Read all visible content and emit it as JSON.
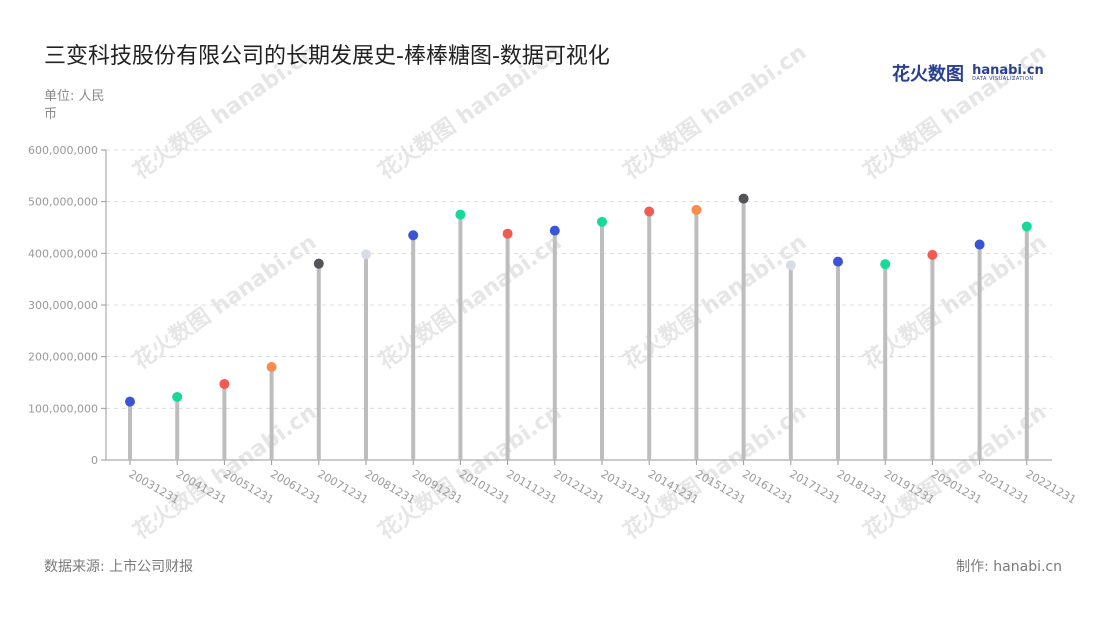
{
  "title": "三变科技股份有限公司的长期发展史-棒棒糖图-数据可视化",
  "unit_label": "单位: 人民币",
  "logo": {
    "cn": "花火数图",
    "en": "hanabi.cn",
    "en_sub": "DATA VISUALIZATION"
  },
  "source_label": "数据来源: 上市公司财报",
  "maker_label": "制作:",
  "maker_value": "hanabi.cn",
  "watermark": "花火数图 hanabi.cn",
  "colors": {
    "stem": "#bdbdbd",
    "grid": "#dcdcdc",
    "axis": "#999999",
    "tick": "#999999"
  },
  "chart_data": {
    "type": "lollipop",
    "title": "三变科技股份有限公司的长期发展史-棒棒糖图-数据可视化",
    "ylabel": "单位: 人民币",
    "ylim": [
      0,
      600000000
    ],
    "yticks": [
      0,
      100000000,
      200000000,
      300000000,
      400000000,
      500000000,
      600000000
    ],
    "ytick_labels": [
      "0",
      "100,000,000",
      "200,000,000",
      "300,000,000",
      "400,000,000",
      "500,000,000",
      "600,000,000"
    ],
    "grid": true,
    "categories": [
      "20031231",
      "20041231",
      "20051231",
      "20061231",
      "20071231",
      "20081231",
      "20091231",
      "20101231",
      "20111231",
      "20121231",
      "20131231",
      "20141231",
      "20151231",
      "20161231",
      "20171231",
      "20181231",
      "20191231",
      "20201231",
      "20211231",
      "20221231"
    ],
    "values": [
      113000000,
      122000000,
      147000000,
      180000000,
      380000000,
      398000000,
      435000000,
      475000000,
      438000000,
      444000000,
      461000000,
      481000000,
      484000000,
      506000000,
      377000000,
      384000000,
      379000000,
      397000000,
      417000000,
      452000000
    ],
    "point_colors": [
      "#3a54d6",
      "#18d99a",
      "#f25a52",
      "#f98d4e",
      "#535358",
      "#d8dce8",
      "#3a54d6",
      "#18d99a",
      "#f25a52",
      "#3a54d6",
      "#18d99a",
      "#f25a52",
      "#f98d4e",
      "#535358",
      "#d8dce8",
      "#3a54d6",
      "#18d99a",
      "#f25a52",
      "#3a54d6",
      "#18d99a"
    ]
  }
}
